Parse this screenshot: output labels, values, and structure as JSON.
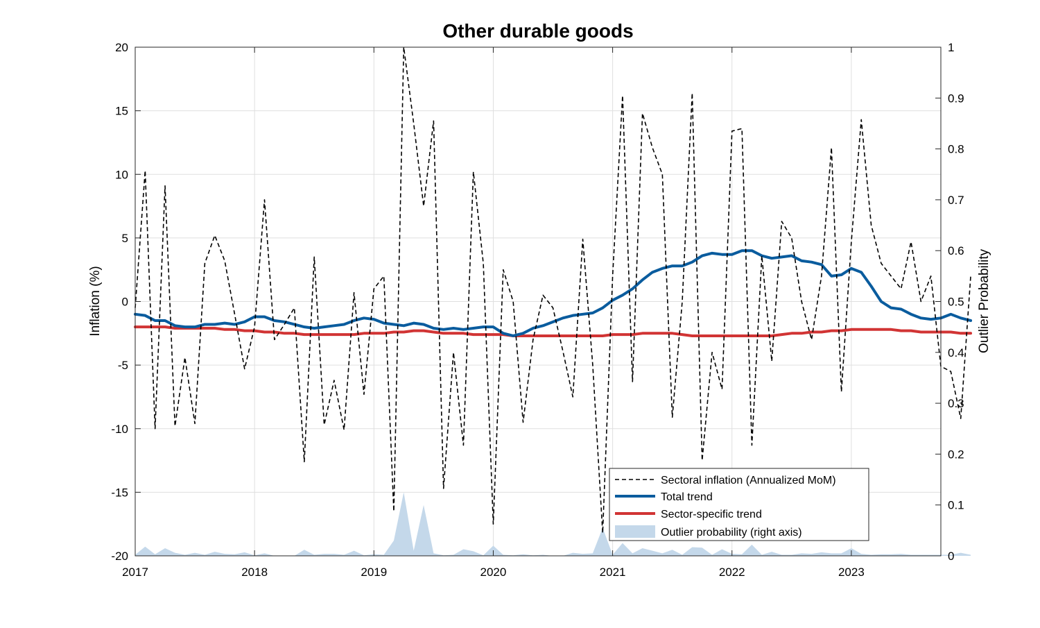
{
  "chart_data": {
    "type": "line",
    "title": "Other durable goods",
    "ylabel": "Inflation (%)",
    "y2label": "Outlier Probability",
    "xlim": [
      2017.0,
      2023.75
    ],
    "ylim": [
      -20,
      20
    ],
    "y2lim": [
      0,
      1
    ],
    "grid": true,
    "legend_position": "bottom-right",
    "x_ticks": [
      2017,
      2018,
      2019,
      2020,
      2021,
      2022,
      2023
    ],
    "y_ticks": [
      -20,
      -15,
      -10,
      -5,
      0,
      5,
      10,
      15,
      20
    ],
    "y2_ticks": [
      0,
      0.1,
      0.2,
      0.3,
      0.4,
      0.5,
      0.6,
      0.7,
      0.8,
      0.9,
      1
    ],
    "series": [
      {
        "name": "Sectoral inflation (Annualized MoM)",
        "style": "dashed",
        "color": "#000000",
        "axis": "left",
        "values": [
          -0.5,
          10.3,
          -10.0,
          9.1,
          -9.8,
          -4.4,
          -9.6,
          3.0,
          5.2,
          3.2,
          -1.0,
          -5.3,
          -2.0,
          8.0,
          -3.0,
          -1.8,
          -0.5,
          -12.6,
          3.5,
          -9.7,
          -6.2,
          -10.1,
          0.7,
          -7.3,
          1.0,
          2.0,
          -16.5,
          20.0,
          14.0,
          7.5,
          14.2,
          -14.7,
          -4.0,
          -11.3,
          10.2,
          3.0,
          -17.5,
          2.5,
          0.0,
          -9.5,
          -3.0,
          0.5,
          -0.5,
          -3.9,
          -7.5,
          4.9,
          -5.0,
          -18.2,
          2.0,
          16.2,
          -6.3,
          14.8,
          12.1,
          10.0,
          -9.1,
          0.0,
          16.4,
          -12.5,
          -4.0,
          -6.9,
          13.4,
          13.6,
          -11.3,
          3.6,
          -4.7,
          6.3,
          5.0,
          0.0,
          -3.0,
          2.0,
          12.1,
          -7.1,
          4.7,
          14.3,
          6.0,
          3.0,
          2.0,
          1.0,
          4.7,
          0.0,
          2.0,
          -5.1,
          -5.5,
          -9.2,
          2.0
        ]
      },
      {
        "name": "Total trend",
        "style": "solid",
        "color": "#0a5c9e",
        "axis": "left",
        "values": [
          -1.0,
          -1.1,
          -1.5,
          -1.5,
          -1.9,
          -2.0,
          -2.0,
          -1.8,
          -1.8,
          -1.7,
          -1.8,
          -1.6,
          -1.2,
          -1.2,
          -1.5,
          -1.6,
          -1.8,
          -2.0,
          -2.1,
          -2.0,
          -1.9,
          -1.8,
          -1.5,
          -1.3,
          -1.4,
          -1.7,
          -1.8,
          -1.9,
          -1.7,
          -1.8,
          -2.1,
          -2.2,
          -2.1,
          -2.2,
          -2.1,
          -2.0,
          -2.0,
          -2.5,
          -2.7,
          -2.5,
          -2.1,
          -1.9,
          -1.6,
          -1.3,
          -1.1,
          -1.0,
          -0.9,
          -0.5,
          0.1,
          0.5,
          1.0,
          1.7,
          2.3,
          2.6,
          2.8,
          2.8,
          3.1,
          3.6,
          3.8,
          3.7,
          3.7,
          4.0,
          4.0,
          3.6,
          3.4,
          3.5,
          3.6,
          3.2,
          3.1,
          2.9,
          2.0,
          2.1,
          2.6,
          2.3,
          1.2,
          0.0,
          -0.5,
          -0.6,
          -1.0,
          -1.3,
          -1.4,
          -1.3,
          -1.0,
          -1.3,
          -1.5
        ]
      },
      {
        "name": "Sector-specific trend",
        "style": "solid",
        "color": "#d13434",
        "axis": "left",
        "values": [
          -2.0,
          -2.0,
          -2.0,
          -2.0,
          -2.1,
          -2.1,
          -2.1,
          -2.1,
          -2.1,
          -2.2,
          -2.2,
          -2.3,
          -2.3,
          -2.4,
          -2.4,
          -2.5,
          -2.5,
          -2.6,
          -2.6,
          -2.6,
          -2.6,
          -2.6,
          -2.6,
          -2.5,
          -2.5,
          -2.5,
          -2.4,
          -2.4,
          -2.3,
          -2.3,
          -2.4,
          -2.5,
          -2.5,
          -2.5,
          -2.6,
          -2.6,
          -2.6,
          -2.6,
          -2.7,
          -2.7,
          -2.7,
          -2.7,
          -2.7,
          -2.7,
          -2.7,
          -2.7,
          -2.7,
          -2.7,
          -2.6,
          -2.6,
          -2.6,
          -2.5,
          -2.5,
          -2.5,
          -2.5,
          -2.6,
          -2.7,
          -2.7,
          -2.7,
          -2.7,
          -2.7,
          -2.7,
          -2.7,
          -2.7,
          -2.7,
          -2.6,
          -2.5,
          -2.5,
          -2.4,
          -2.4,
          -2.3,
          -2.3,
          -2.2,
          -2.2,
          -2.2,
          -2.2,
          -2.2,
          -2.3,
          -2.3,
          -2.4,
          -2.4,
          -2.4,
          -2.4,
          -2.5,
          -2.5
        ]
      },
      {
        "name": "Outlier probability (right axis)",
        "style": "area",
        "color": "#c4d8ea",
        "axis": "right",
        "values": [
          0.002,
          0.018,
          0.003,
          0.015,
          0.006,
          0.002,
          0.006,
          0.002,
          0.008,
          0.004,
          0.003,
          0.007,
          0.001,
          0.005,
          0.0,
          0.0,
          0.0,
          0.012,
          0.002,
          0.004,
          0.004,
          0.002,
          0.01,
          0.001,
          0.003,
          0.002,
          0.03,
          0.125,
          0.01,
          0.1,
          0.005,
          0.001,
          0.002,
          0.013,
          0.009,
          0.001,
          0.02,
          0.002,
          0.001,
          0.003,
          0.001,
          0.002,
          0.0,
          0.0,
          0.006,
          0.004,
          0.005,
          0.055,
          0.002,
          0.025,
          0.005,
          0.015,
          0.01,
          0.005,
          0.012,
          0.002,
          0.017,
          0.016,
          0.002,
          0.013,
          0.004,
          0.003,
          0.022,
          0.002,
          0.008,
          0.002,
          0.002,
          0.005,
          0.004,
          0.007,
          0.005,
          0.005,
          0.015,
          0.004,
          0.002,
          0.003,
          0.003,
          0.004,
          0.002,
          0.002,
          0.002,
          0.002,
          0.002,
          0.006,
          0.002
        ]
      }
    ]
  }
}
